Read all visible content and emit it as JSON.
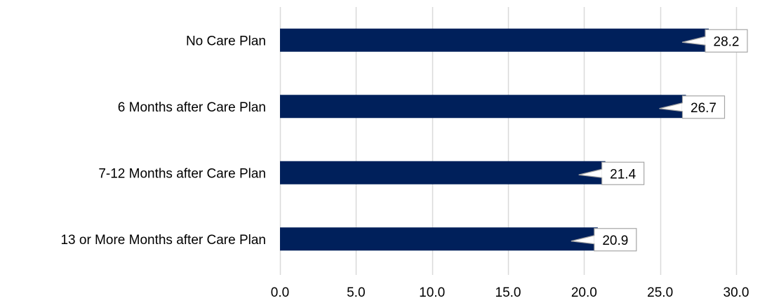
{
  "chart_data": {
    "type": "bar",
    "orientation": "horizontal",
    "categories": [
      "No Care Plan",
      "6 Months after Care Plan ",
      "7-12 Months after Care Plan",
      "13 or More Months after Care Plan"
    ],
    "values": [
      28.2,
      26.7,
      21.4,
      20.9
    ],
    "data_labels": [
      "28.2",
      "26.7",
      "21.4",
      "20.9"
    ],
    "xlim": [
      0,
      30
    ],
    "x_ticks": [
      0,
      5,
      10,
      15,
      20,
      25,
      30
    ],
    "x_tick_labels": [
      "0.0",
      "5.0",
      "10.0",
      "15.0",
      "20.0",
      "25.0",
      "30.0"
    ],
    "title": "",
    "xlabel": "",
    "ylabel": "",
    "grid": "vertical",
    "legend": "none",
    "colors": {
      "bar": "#00205B",
      "grid": "#D9D9D9",
      "callout_border": "#A6A6A6"
    }
  }
}
